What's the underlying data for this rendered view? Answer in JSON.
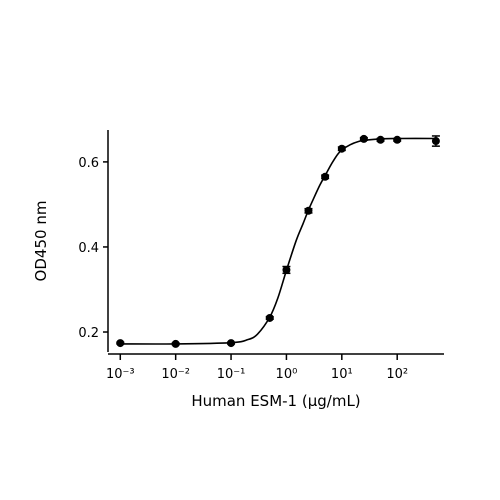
{
  "chart_data": {
    "type": "scatter",
    "x_label": "Human ESM-1 (μg/mL)",
    "y_label": "OD450 nm",
    "xscale": "log",
    "xlim": [
      0.0006,
      700
    ],
    "ylim": [
      0.153,
      0.675
    ],
    "xticks": [
      {
        "value": 0.001,
        "label": "10⁻³"
      },
      {
        "value": 0.01,
        "label": "10⁻²"
      },
      {
        "value": 0.1,
        "label": "10⁻¹"
      },
      {
        "value": 1,
        "label": "10⁰"
      },
      {
        "value": 10,
        "label": "10¹"
      },
      {
        "value": 100,
        "label": "10²"
      }
    ],
    "yticks": [
      0.2,
      0.4,
      0.6
    ],
    "color": "#000000",
    "x": [
      0.001,
      0.01,
      0.1,
      0.5,
      1,
      2.5,
      5,
      10,
      25,
      50,
      100,
      500
    ],
    "values": [
      0.174,
      0.172,
      0.174,
      0.233,
      0.346,
      0.485,
      0.565,
      0.631,
      0.654,
      0.652,
      0.652,
      0.649
    ],
    "errors": [
      0.002,
      0.002,
      0.002,
      0.003,
      0.008,
      0.005,
      0.004,
      0.004,
      0.003,
      0.003,
      0.003,
      0.012
    ],
    "fit_curve": {
      "x": [
        0.001,
        0.01,
        0.1,
        0.2,
        0.3,
        0.5,
        0.7,
        1,
        1.5,
        2,
        2.5,
        3,
        4,
        5,
        7,
        10,
        20,
        50,
        100,
        500
      ],
      "values": [
        0.172,
        0.172,
        0.175,
        0.182,
        0.195,
        0.235,
        0.28,
        0.345,
        0.415,
        0.455,
        0.487,
        0.51,
        0.545,
        0.568,
        0.602,
        0.628,
        0.648,
        0.654,
        0.655,
        0.655
      ]
    }
  }
}
